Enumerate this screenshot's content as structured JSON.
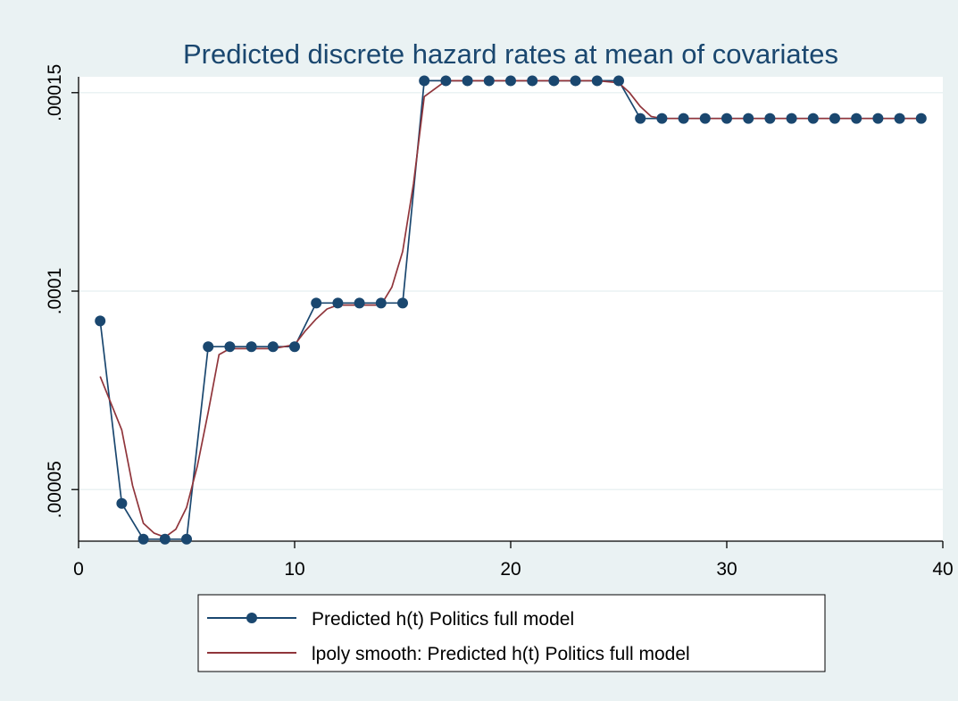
{
  "chart_data": {
    "type": "line",
    "title": "Predicted discrete hazard rates at mean of covariates",
    "xlabel": "",
    "ylabel": "",
    "xlim": [
      0,
      40
    ],
    "ylim": [
      3.7e-05,
      0.000154
    ],
    "x_ticks": [
      0,
      10,
      20,
      30,
      40
    ],
    "x_tick_labels": [
      "0",
      "10",
      "20",
      "30",
      "40"
    ],
    "y_ticks": [
      5e-05,
      0.0001,
      0.00015
    ],
    "y_tick_labels": [
      ".00005",
      ".0001",
      ".00015"
    ],
    "grid": "horizontal",
    "legend_position": "bottom",
    "colors": {
      "series1": "#1a476f",
      "series2": "#90353b",
      "grid": "#eaf2f3",
      "background": "#eaf2f3",
      "plot_background": "#ffffff",
      "title": "#1a476f"
    },
    "series": [
      {
        "name": "Predicted h(t) Politics full model",
        "style": "line-markers",
        "x": [
          1,
          2,
          3,
          4,
          5,
          6,
          7,
          8,
          9,
          10,
          11,
          12,
          13,
          14,
          15,
          16,
          17,
          18,
          19,
          20,
          21,
          22,
          23,
          24,
          25,
          26,
          27,
          28,
          29,
          30,
          31,
          32,
          33,
          34,
          35,
          36,
          37,
          38,
          39
        ],
        "y": [
          9.25e-05,
          4.65e-05,
          3.75e-05,
          3.75e-05,
          3.75e-05,
          8.6e-05,
          8.6e-05,
          8.6e-05,
          8.6e-05,
          8.6e-05,
          9.7e-05,
          9.7e-05,
          9.7e-05,
          9.7e-05,
          9.7e-05,
          0.000153,
          0.000153,
          0.000153,
          0.000153,
          0.000153,
          0.000153,
          0.000153,
          0.000153,
          0.000153,
          0.000153,
          0.0001435,
          0.0001435,
          0.0001435,
          0.0001435,
          0.0001435,
          0.0001435,
          0.0001435,
          0.0001435,
          0.0001435,
          0.0001435,
          0.0001435,
          0.0001435,
          0.0001435,
          0.0001435
        ]
      },
      {
        "name": "lpoly smooth: Predicted h(t) Politics full model",
        "style": "line",
        "x": [
          1,
          2,
          2.5,
          3,
          3.5,
          4,
          4.5,
          5,
          5.5,
          6,
          6.5,
          7,
          8,
          9,
          10,
          10.5,
          11,
          11.5,
          12,
          13,
          14,
          14.5,
          15,
          15.5,
          16,
          17,
          18,
          19,
          20,
          21,
          22,
          23,
          24,
          25,
          25.5,
          26,
          26.5,
          27,
          28,
          29,
          30,
          31,
          32,
          33,
          34,
          35,
          36,
          37,
          38,
          39
        ],
        "y": [
          7.85e-05,
          6.5e-05,
          5.1e-05,
          4.15e-05,
          3.9e-05,
          3.8e-05,
          4e-05,
          4.55e-05,
          5.6e-05,
          6.95e-05,
          8.4e-05,
          8.55e-05,
          8.55e-05,
          8.55e-05,
          8.65e-05,
          9e-05,
          9.3e-05,
          9.55e-05,
          9.65e-05,
          9.65e-05,
          9.65e-05,
          0.000101,
          0.00011,
          0.000127,
          0.000149,
          0.000153,
          0.000153,
          0.000153,
          0.000153,
          0.000153,
          0.000153,
          0.000153,
          0.000153,
          0.0001525,
          0.00015,
          0.0001465,
          0.000144,
          0.0001435,
          0.0001435,
          0.0001435,
          0.0001435,
          0.0001435,
          0.0001435,
          0.0001435,
          0.0001435,
          0.0001435,
          0.0001435,
          0.0001435,
          0.0001435,
          0.0001435
        ]
      }
    ]
  }
}
